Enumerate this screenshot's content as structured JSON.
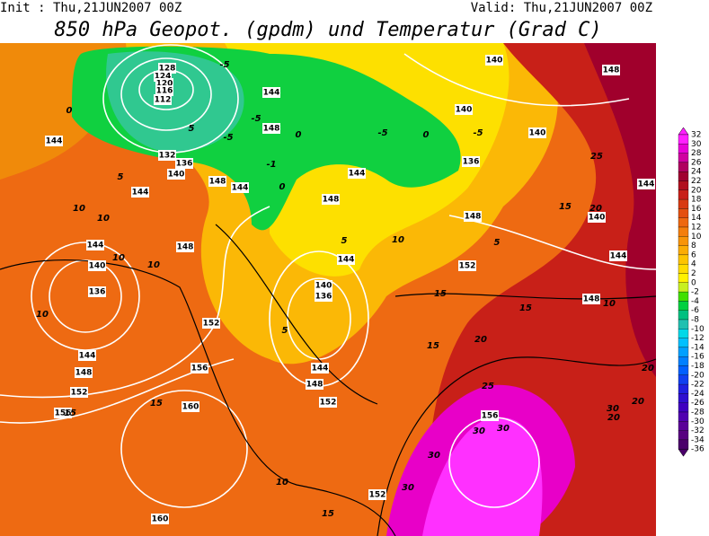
{
  "header": {
    "init": "Init : Thu,21JUN2007 00Z",
    "valid": "Valid: Thu,21JUN2007 00Z",
    "title": "850 hPa Geopot. (gpdm) und Temperatur (Grad C)"
  },
  "legend": {
    "labels": [
      32,
      30,
      28,
      26,
      24,
      22,
      20,
      18,
      16,
      14,
      12,
      10,
      8,
      6,
      4,
      2,
      0,
      -2,
      -4,
      -6,
      -8,
      -10,
      -12,
      -14,
      -16,
      -18,
      -20,
      -22,
      -24,
      -26,
      -28,
      -30,
      -32,
      -34,
      -36
    ],
    "colors": [
      "#ff20ff",
      "#e800d8",
      "#d000a0",
      "#b00060",
      "#a00030",
      "#b0101e",
      "#c82018",
      "#d83a12",
      "#e45010",
      "#ee6810",
      "#f47e0c",
      "#f89408",
      "#fbac04",
      "#fdc400",
      "#ffdc00",
      "#fff200",
      "#c8f020",
      "#40e000",
      "#00d040",
      "#00c080",
      "#20c0b0",
      "#00d8e8",
      "#00c0ff",
      "#00a0ff",
      "#0080ff",
      "#0060ff",
      "#1040f0",
      "#2020e0",
      "#3010d0",
      "#4000c0",
      "#5000b0",
      "#5a0098",
      "#580080",
      "#4a006a"
    ]
  },
  "geopotential_labels": [
    128,
    124,
    120,
    116,
    112,
    132,
    136,
    140,
    144,
    144,
    148,
    144,
    144,
    148,
    144,
    148,
    148,
    144,
    140,
    136,
    144,
    140,
    136,
    152,
    156,
    144,
    148,
    152,
    156,
    160,
    160,
    152,
    156,
    152,
    148,
    136,
    140,
    140,
    148,
    140,
    144,
    140,
    144,
    148,
    144,
    148,
    152
  ],
  "temperature_labels": [
    -5,
    0,
    -5,
    -5,
    5,
    -1,
    0,
    -5,
    -5,
    0,
    5,
    10,
    10,
    10,
    10,
    10,
    5,
    10,
    5,
    5,
    15,
    15,
    20,
    25,
    30,
    30,
    30,
    30,
    15,
    10,
    15,
    15,
    15,
    20,
    25,
    15,
    10,
    20,
    20,
    20,
    30,
    0
  ]
}
